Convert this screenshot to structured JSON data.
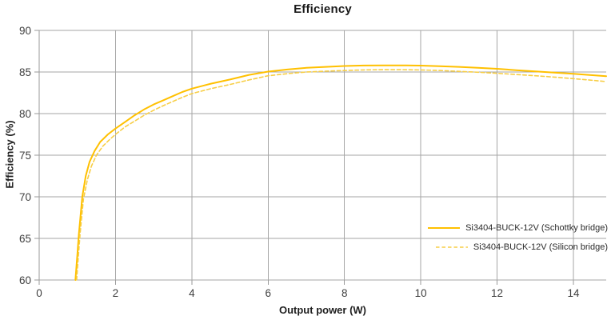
{
  "title": "Efficiency",
  "axes": {
    "x_label": "Output power (W)",
    "y_label": "Efficiency (%)"
  },
  "colors": {
    "grid": "#a6a6a6",
    "axis": "#9a9a9a",
    "tick_label": "#404040",
    "series_solid": "#ffc000",
    "series_dashed": "#f7ce46"
  },
  "chart_data": {
    "type": "line",
    "title": "Efficiency",
    "xlabel": "Output power (W)",
    "ylabel": "Efficiency (%)",
    "xlim": [
      0,
      14.86
    ],
    "ylim": [
      60,
      90
    ],
    "x_ticks": [
      0,
      2,
      4,
      6,
      8,
      10,
      12,
      14
    ],
    "y_ticks": [
      60,
      65,
      70,
      75,
      80,
      85,
      90
    ],
    "grid": true,
    "legend_position": "inside-lower-right",
    "series": [
      {
        "name": "Si3404-BUCK-12V (Schottky bridge)",
        "line_style": "solid",
        "color": "#ffc000",
        "points": [
          [
            0.95,
            60.0
          ],
          [
            1.0,
            63.0
          ],
          [
            1.04,
            65.5
          ],
          [
            1.13,
            70.0
          ],
          [
            1.22,
            72.5
          ],
          [
            1.32,
            74.2
          ],
          [
            1.45,
            75.5
          ],
          [
            1.6,
            76.6
          ],
          [
            1.8,
            77.5
          ],
          [
            2.0,
            78.2
          ],
          [
            2.25,
            79.0
          ],
          [
            2.5,
            79.8
          ],
          [
            2.75,
            80.5
          ],
          [
            3.0,
            81.1
          ],
          [
            3.25,
            81.6
          ],
          [
            3.5,
            82.1
          ],
          [
            3.75,
            82.6
          ],
          [
            4.0,
            83.0
          ],
          [
            4.5,
            83.6
          ],
          [
            5.0,
            84.1
          ],
          [
            5.5,
            84.65
          ],
          [
            6.0,
            85.05
          ],
          [
            6.5,
            85.3
          ],
          [
            7.0,
            85.5
          ],
          [
            7.5,
            85.62
          ],
          [
            8.0,
            85.72
          ],
          [
            8.5,
            85.78
          ],
          [
            9.0,
            85.8
          ],
          [
            9.5,
            85.8
          ],
          [
            10.0,
            85.77
          ],
          [
            10.5,
            85.7
          ],
          [
            11.0,
            85.62
          ],
          [
            11.5,
            85.5
          ],
          [
            12.0,
            85.38
          ],
          [
            12.5,
            85.22
          ],
          [
            13.0,
            85.08
          ],
          [
            13.5,
            84.93
          ],
          [
            14.0,
            84.78
          ],
          [
            14.5,
            84.62
          ],
          [
            14.86,
            84.5
          ]
        ]
      },
      {
        "name": "Si3404-BUCK-12V (Silicon bridge)",
        "line_style": "dashed",
        "color": "#f7ce46",
        "points": [
          [
            0.98,
            60.0
          ],
          [
            1.03,
            63.0
          ],
          [
            1.07,
            65.5
          ],
          [
            1.16,
            69.7
          ],
          [
            1.26,
            72.0
          ],
          [
            1.37,
            73.7
          ],
          [
            1.5,
            75.0
          ],
          [
            1.67,
            76.1
          ],
          [
            1.85,
            76.9
          ],
          [
            2.0,
            77.5
          ],
          [
            2.25,
            78.4
          ],
          [
            2.5,
            79.1
          ],
          [
            2.75,
            79.8
          ],
          [
            3.0,
            80.4
          ],
          [
            3.25,
            80.95
          ],
          [
            3.5,
            81.45
          ],
          [
            3.75,
            81.95
          ],
          [
            4.0,
            82.4
          ],
          [
            4.5,
            83.0
          ],
          [
            5.0,
            83.5
          ],
          [
            5.5,
            84.05
          ],
          [
            6.0,
            84.55
          ],
          [
            6.5,
            84.8
          ],
          [
            7.0,
            85.0
          ],
          [
            7.5,
            85.1
          ],
          [
            8.0,
            85.18
          ],
          [
            8.5,
            85.25
          ],
          [
            9.0,
            85.28
          ],
          [
            9.5,
            85.28
          ],
          [
            10.0,
            85.25
          ],
          [
            10.5,
            85.18
          ],
          [
            11.0,
            85.08
          ],
          [
            11.5,
            84.97
          ],
          [
            12.0,
            84.85
          ],
          [
            12.5,
            84.7
          ],
          [
            13.0,
            84.55
          ],
          [
            13.5,
            84.38
          ],
          [
            14.0,
            84.2
          ],
          [
            14.5,
            84.0
          ],
          [
            14.86,
            83.85
          ]
        ]
      }
    ]
  }
}
